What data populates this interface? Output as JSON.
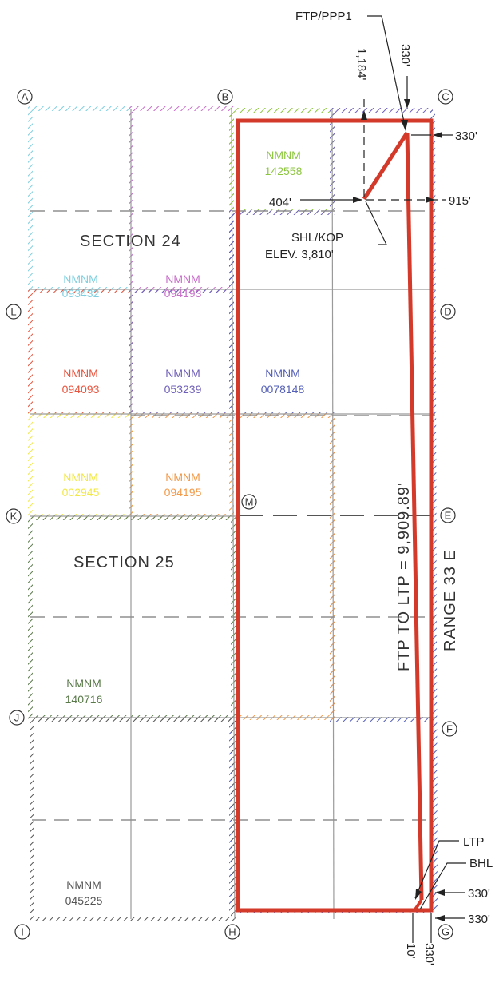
{
  "corners": {
    "A": "Ⓐ",
    "B": "Ⓑ",
    "C": "Ⓒ",
    "D": "Ⓓ",
    "E": "Ⓔ",
    "F": "Ⓕ",
    "G": "Ⓖ",
    "H": "Ⓗ",
    "I": "Ⓘ",
    "J": "Ⓙ",
    "K": "Ⓚ",
    "L": "Ⓛ",
    "M": "Ⓜ"
  },
  "sections": {
    "s24": "SECTION  24",
    "s25": "SECTION  25"
  },
  "range": "RANGE  33  E",
  "lateral_length": "FTP  TO  LTP  =  9,909.89'",
  "tracts": {
    "t142558": {
      "name": "NMNM",
      "number": "142558",
      "color": "#8cc63f"
    },
    "t093432": {
      "name": "NMNM",
      "number": "093432",
      "color": "#7fcfe0"
    },
    "t094193": {
      "name": "NMNM",
      "number": "094193",
      "color": "#c86fc9"
    },
    "t094093": {
      "name": "NMNM",
      "number": "094093",
      "color": "#e8543e"
    },
    "t053239": {
      "name": "NMNM",
      "number": "053239",
      "color": "#6f5fb8"
    },
    "t0078148": {
      "name": "NMNM",
      "number": "0078148",
      "color": "#5560b8"
    },
    "t002945": {
      "name": "NMNM",
      "number": "002945",
      "color": "#f2e84a"
    },
    "t094195": {
      "name": "NMNM",
      "number": "094195",
      "color": "#f2994a"
    },
    "t140716": {
      "name": "NMNM",
      "number": "140716",
      "color": "#5a7a4a"
    },
    "t045225": {
      "name": "NMNM",
      "number": "045225",
      "color": "#555555"
    }
  },
  "callouts": {
    "ftp": "FTP/PPP1",
    "shl": "SHL/KOP",
    "elev": "ELEV. 3,810'",
    "ltp": "LTP",
    "bhl": "BHL"
  },
  "dims": {
    "d330_top": "330'",
    "d1184": "1,184'",
    "d330_right": "330'",
    "d404": "404'",
    "d915": "915'",
    "d330_ltp": "330'",
    "d330_bhl": "330'",
    "d10": "10'",
    "d330_bottom": "330'"
  },
  "colors": {
    "well": "#d43a2a",
    "grid": "#9a9a9a",
    "border": "#6f6fc0"
  }
}
